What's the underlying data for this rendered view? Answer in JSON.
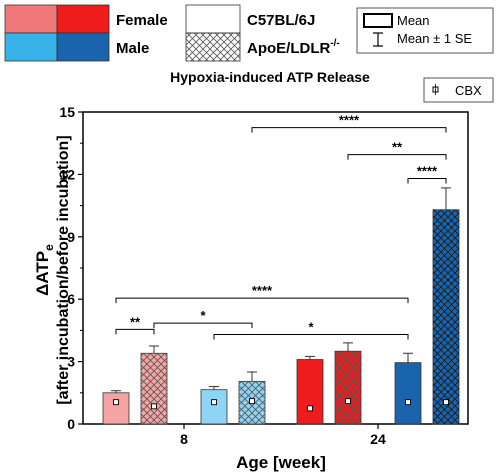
{
  "legend": {
    "female": "Female",
    "male": "Male",
    "wildtype": "C57BL/6J",
    "knockout_base": "ApoE/LDLR",
    "knockout_sup": "-/-",
    "mean": "Mean",
    "mean_se": "Mean ± 1 SE",
    "cbx": "CBX"
  },
  "colors": {
    "female_light": "#f07878",
    "female_dark": "#ee1c1c",
    "male_light": "#38b3ea",
    "male_dark": "#1a63ad",
    "female_wt_bar": "#f5a3a3",
    "female_ko_bar": "#f5a3a3",
    "male_wt_bar": "#8fd3f5",
    "male_ko_bar": "#8fd3f5",
    "female24_bar": "#ee1c1c",
    "male24_bar": "#1a63ad"
  },
  "chart_data": {
    "type": "bar",
    "title": "Hypoxia-induced ATP Release",
    "ylabel_main": "ΔATP",
    "ylabel_sub": "e",
    "ylabel_line2": "[after incubation/before incubation]",
    "xlabel": "Age [week]",
    "ylim": [
      0,
      15
    ],
    "yticks": [
      "0",
      "3",
      "6",
      "9",
      "12",
      "15"
    ],
    "categories": [
      "8",
      "24"
    ],
    "bars": [
      {
        "age": "8",
        "sex": "Female",
        "strain": "C57BL/6J",
        "mean": 1.5,
        "se": 0.1,
        "cbx": 1.05
      },
      {
        "age": "8",
        "sex": "Female",
        "strain": "ApoE/LDLR-/-",
        "mean": 3.4,
        "se": 0.35,
        "cbx": 0.85
      },
      {
        "age": "8",
        "sex": "Male",
        "strain": "C57BL/6J",
        "mean": 1.65,
        "se": 0.15,
        "cbx": 1.05
      },
      {
        "age": "8",
        "sex": "Male",
        "strain": "ApoE/LDLR-/-",
        "mean": 2.05,
        "se": 0.45,
        "cbx": 1.1
      },
      {
        "age": "24",
        "sex": "Female",
        "strain": "C57BL/6J",
        "mean": 3.1,
        "se": 0.15,
        "cbx": 0.75
      },
      {
        "age": "24",
        "sex": "Female",
        "strain": "ApoE/LDLR-/-",
        "mean": 3.5,
        "se": 0.4,
        "cbx": 1.1
      },
      {
        "age": "24",
        "sex": "Male",
        "strain": "C57BL/6J",
        "mean": 2.95,
        "se": 0.45,
        "cbx": 1.05
      },
      {
        "age": "24",
        "sex": "Male",
        "strain": "ApoE/LDLR-/-",
        "mean": 10.3,
        "se": 1.05,
        "cbx": 1.05
      }
    ],
    "significance": [
      {
        "from": 0,
        "to": 1,
        "label": "**",
        "y": 4.55
      },
      {
        "from": 1,
        "to": 3,
        "label": "*",
        "y": 4.85
      },
      {
        "from": 0,
        "to": 6,
        "label": "****",
        "y": 6.05
      },
      {
        "from": 2,
        "to": 6,
        "label": "*",
        "y": 4.3
      },
      {
        "from": 3,
        "to": 7,
        "label": "****",
        "y": 14.25
      },
      {
        "from": 5,
        "to": 7,
        "label": "**",
        "y": 12.95
      },
      {
        "from": 6,
        "to": 7,
        "label": "****",
        "y": 11.8
      }
    ]
  }
}
